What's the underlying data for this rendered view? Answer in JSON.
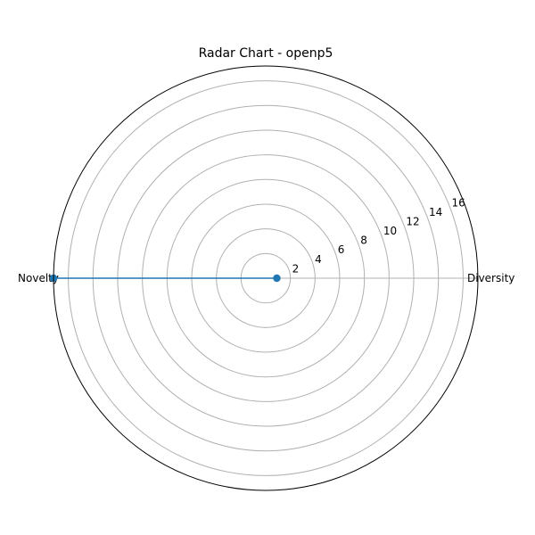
{
  "chart_data": {
    "type": "radar",
    "title": "Radar Chart - openp5",
    "categories": [
      "Diversity",
      "Novelty"
    ],
    "series": [
      {
        "values": [
          0.9,
          17.2
        ]
      }
    ],
    "rlim": [
      0.0,
      17.2
    ],
    "r_ticks": [
      2,
      4,
      6,
      8,
      10,
      12,
      14,
      16
    ],
    "grid": true,
    "colors": {
      "series": "#1f77b4",
      "grid": "#b0b0b0",
      "frame": "#000000"
    }
  }
}
